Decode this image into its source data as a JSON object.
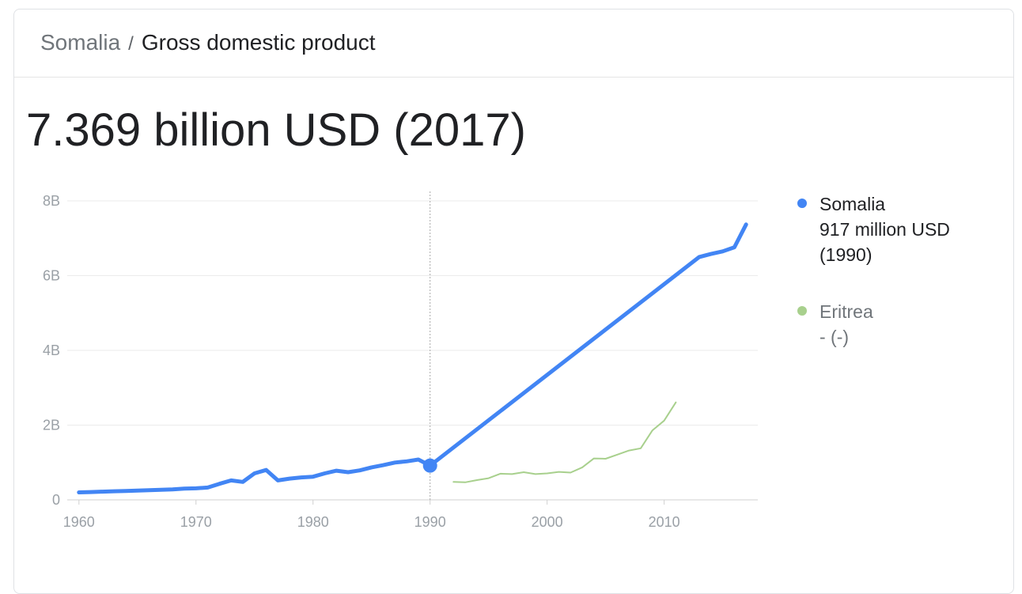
{
  "breadcrumb": {
    "country": "Somalia",
    "separator": "/",
    "metric": "Gross domestic product"
  },
  "headline": "7.369 billion USD (2017)",
  "legend": [
    {
      "name": "Somalia",
      "value_line1": "917 million USD",
      "value_line2": "(1990)",
      "color": "#4285f4",
      "state": "active"
    },
    {
      "name": "Eritrea",
      "value_line1": "- (-)",
      "value_line2": "",
      "color": "#a8d08d",
      "state": "inactive"
    }
  ],
  "chart_data": {
    "type": "line",
    "title": "",
    "xlabel": "",
    "ylabel": "",
    "xlim": [
      1959,
      2018
    ],
    "ylim": [
      0,
      8
    ],
    "x_ticks": [
      1960,
      1970,
      1980,
      1990,
      2000,
      2010
    ],
    "x_tick_labels": [
      "1960",
      "1970",
      "1980",
      "1990",
      "2000",
      "2010"
    ],
    "y_ticks": [
      0,
      2,
      4,
      6,
      8
    ],
    "y_tick_labels": [
      "0",
      "2B",
      "4B",
      "6B",
      "8B"
    ],
    "y_unit": "billion USD",
    "grid": true,
    "highlight": {
      "x": 1990,
      "y": 0.917,
      "series": "Somalia"
    },
    "series": [
      {
        "name": "Somalia",
        "color": "#4285f4",
        "x": [
          1960,
          1961,
          1962,
          1963,
          1964,
          1965,
          1966,
          1967,
          1968,
          1969,
          1970,
          1971,
          1972,
          1973,
          1974,
          1975,
          1976,
          1977,
          1978,
          1979,
          1980,
          1981,
          1982,
          1983,
          1984,
          1985,
          1986,
          1987,
          1988,
          1989,
          1990,
          2013,
          2014,
          2015,
          2016,
          2017
        ],
        "y": [
          0.2,
          0.21,
          0.22,
          0.23,
          0.24,
          0.25,
          0.26,
          0.27,
          0.28,
          0.3,
          0.31,
          0.33,
          0.43,
          0.52,
          0.48,
          0.71,
          0.8,
          0.52,
          0.57,
          0.6,
          0.62,
          0.71,
          0.78,
          0.74,
          0.79,
          0.87,
          0.93,
          1.0,
          1.03,
          1.08,
          0.917,
          6.5,
          6.58,
          6.65,
          6.76,
          7.369
        ]
      },
      {
        "name": "Eritrea",
        "color": "#a8d08d",
        "x": [
          1992,
          1993,
          1994,
          1995,
          1996,
          1997,
          1998,
          1999,
          2000,
          2001,
          2002,
          2003,
          2004,
          2005,
          2006,
          2007,
          2008,
          2009,
          2010,
          2011
        ],
        "y": [
          0.48,
          0.47,
          0.53,
          0.58,
          0.7,
          0.69,
          0.74,
          0.69,
          0.71,
          0.75,
          0.73,
          0.87,
          1.11,
          1.1,
          1.21,
          1.32,
          1.38,
          1.86,
          2.12,
          2.61
        ]
      }
    ]
  }
}
